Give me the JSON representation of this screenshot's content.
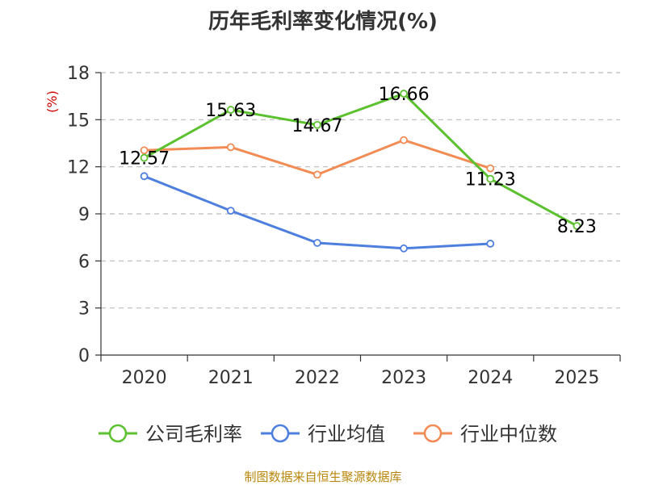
{
  "chart_data": {
    "type": "line",
    "title": "历年毛利率变化情况(%)",
    "xlabel": "",
    "ylabel": "(%)",
    "categories": [
      "2020",
      "2021",
      "2022",
      "2023",
      "2024",
      "2025"
    ],
    "ylim": [
      0,
      18
    ],
    "yticks": [
      0,
      3,
      6,
      9,
      12,
      15,
      18
    ],
    "grid": true,
    "legend_position": "bottom",
    "series": [
      {
        "name": "公司毛利率",
        "color": "#5cc12f",
        "values": [
          12.57,
          15.63,
          14.67,
          16.66,
          11.23,
          8.23
        ],
        "labels": [
          "12.57",
          "15.63",
          "14.67",
          "16.66",
          "11.23",
          "8.23"
        ]
      },
      {
        "name": "行业均值",
        "color": "#4e7fde",
        "values": [
          11.4,
          9.2,
          7.15,
          6.8,
          7.1,
          null
        ]
      },
      {
        "name": "行业中位数",
        "color": "#f28b54",
        "values": [
          13.05,
          13.25,
          11.5,
          13.7,
          11.9,
          null
        ]
      }
    ]
  },
  "source": "制图数据来自恒生聚源数据库"
}
